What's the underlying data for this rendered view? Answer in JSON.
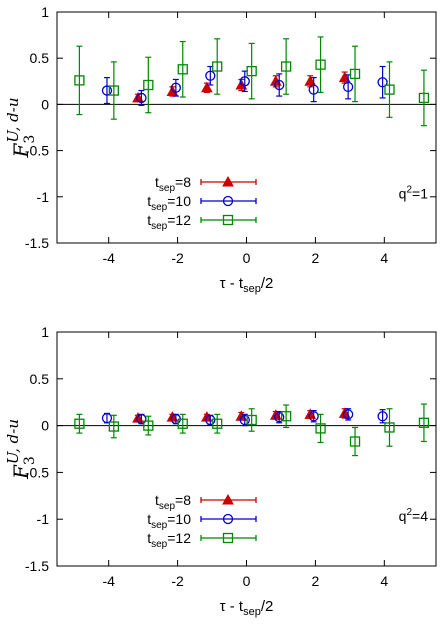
{
  "chart_data": [
    {
      "type": "scatter",
      "panel": "top",
      "xlabel": "τ - t_sep/2",
      "xlabel_main": "τ - t",
      "xlabel_sub": "sep",
      "xlabel_end": "/2",
      "ylabel_main": "F",
      "ylabel_sub": "3",
      "ylabel_sup": "U, d-u",
      "annotation": "q²=1",
      "annotation_base": "q",
      "annotation_exp": "2",
      "annotation_end": "=1",
      "xlim": [
        -5.5,
        5.5
      ],
      "ylim": [
        -1.5,
        1
      ],
      "xticks": [
        -4,
        -2,
        0,
        2,
        4
      ],
      "yticks": [
        1,
        0.5,
        0,
        -0.5,
        -1,
        -1.5
      ],
      "legend_position": "bottom-left",
      "series": [
        {
          "name": "t_sep=8",
          "name_main": "t",
          "name_sub": "sep",
          "name_end": "=8",
          "color": "#cc0000",
          "marker": "triangle",
          "points": [
            [
              -3,
              0.07,
              0.04
            ],
            [
              -2,
              0.14,
              0.05
            ],
            [
              -1,
              0.18,
              0.05
            ],
            [
              0,
              0.21,
              0.06
            ],
            [
              1,
              0.25,
              0.06
            ],
            [
              2,
              0.25,
              0.06
            ],
            [
              3,
              0.29,
              0.06
            ]
          ]
        },
        {
          "name": "t_sep=10",
          "name_main": "t",
          "name_sub": "sep",
          "name_end": "=10",
          "color": "#0000cc",
          "marker": "circle",
          "points": [
            [
              -4,
              0.15,
              0.14
            ],
            [
              -3,
              0.07,
              0.08
            ],
            [
              -2,
              0.18,
              0.09
            ],
            [
              -1,
              0.31,
              0.1
            ],
            [
              0,
              0.25,
              0.11
            ],
            [
              1,
              0.21,
              0.12
            ],
            [
              2,
              0.16,
              0.13
            ],
            [
              3,
              0.19,
              0.13
            ],
            [
              4,
              0.24,
              0.17
            ]
          ]
        },
        {
          "name": "t_sep=12",
          "name_main": "t",
          "name_sub": "sep",
          "name_end": "=12",
          "color": "#008800",
          "marker": "square",
          "points": [
            [
              -5,
              0.26,
              0.37
            ],
            [
              -4,
              0.15,
              0.31
            ],
            [
              -3,
              0.21,
              0.3
            ],
            [
              -2,
              0.38,
              0.3
            ],
            [
              -1,
              0.41,
              0.3
            ],
            [
              0,
              0.36,
              0.3
            ],
            [
              1,
              0.41,
              0.3
            ],
            [
              2,
              0.43,
              0.3
            ],
            [
              3,
              0.33,
              0.3
            ],
            [
              4,
              0.16,
              0.3
            ],
            [
              5,
              0.07,
              0.3
            ]
          ]
        }
      ]
    },
    {
      "type": "scatter",
      "panel": "bottom",
      "xlabel": "τ - t_sep/2",
      "xlabel_main": "τ - t",
      "xlabel_sub": "sep",
      "xlabel_end": "/2",
      "ylabel_main": "F",
      "ylabel_sub": "3",
      "ylabel_sup": "U, d-u",
      "annotation": "q²=4",
      "annotation_base": "q",
      "annotation_exp": "2",
      "annotation_end": "=4",
      "xlim": [
        -5.5,
        5.5
      ],
      "ylim": [
        -1.5,
        1
      ],
      "xticks": [
        -4,
        -2,
        0,
        2,
        4
      ],
      "yticks": [
        1,
        0.5,
        0,
        -0.5,
        -1,
        -1.5
      ],
      "legend_position": "bottom-left",
      "series": [
        {
          "name": "t_sep=8",
          "name_main": "t",
          "name_sub": "sep",
          "name_end": "=8",
          "color": "#cc0000",
          "marker": "triangle",
          "points": [
            [
              -3,
              0.08,
              0.03
            ],
            [
              -2,
              0.09,
              0.03
            ],
            [
              -1,
              0.09,
              0.03
            ],
            [
              0,
              0.1,
              0.04
            ],
            [
              1,
              0.11,
              0.04
            ],
            [
              2,
              0.12,
              0.04
            ],
            [
              3,
              0.13,
              0.05
            ]
          ]
        },
        {
          "name": "t_sep=10",
          "name_main": "t",
          "name_sub": "sep",
          "name_end": "=10",
          "color": "#0000cc",
          "marker": "circle",
          "points": [
            [
              -4,
              0.08,
              0.05
            ],
            [
              -3,
              0.07,
              0.05
            ],
            [
              -2,
              0.07,
              0.05
            ],
            [
              -1,
              0.06,
              0.05
            ],
            [
              0,
              0.06,
              0.06
            ],
            [
              1,
              0.09,
              0.06
            ],
            [
              2,
              0.1,
              0.06
            ],
            [
              3,
              0.12,
              0.06
            ],
            [
              4,
              0.1,
              0.07
            ]
          ]
        },
        {
          "name": "t_sep=12",
          "name_main": "t",
          "name_sub": "sep",
          "name_end": "=12",
          "color": "#008800",
          "marker": "square",
          "points": [
            [
              -5,
              0.02,
              0.1
            ],
            [
              -4,
              -0.01,
              0.12
            ],
            [
              -3,
              0.0,
              0.1
            ],
            [
              -2,
              0.02,
              0.1
            ],
            [
              -1,
              0.02,
              0.1
            ],
            [
              0,
              0.06,
              0.12
            ],
            [
              1,
              0.1,
              0.12
            ],
            [
              2,
              -0.03,
              0.15
            ],
            [
              3,
              -0.17,
              0.15
            ],
            [
              4,
              -0.02,
              0.2
            ],
            [
              5,
              0.03,
              0.2
            ]
          ]
        }
      ]
    }
  ]
}
